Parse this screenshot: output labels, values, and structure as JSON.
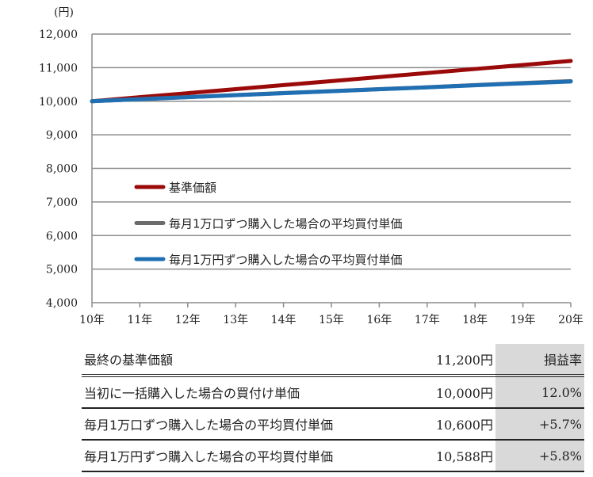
{
  "chart_data": {
    "type": "line",
    "ylabel": "(円)",
    "ylim": [
      4000,
      12000
    ],
    "yticks": [
      "4,000",
      "5,000",
      "6,000",
      "7,000",
      "8,000",
      "9,000",
      "10,000",
      "11,000",
      "12,000"
    ],
    "ytick_values": [
      4000,
      5000,
      6000,
      7000,
      8000,
      9000,
      10000,
      11000,
      12000
    ],
    "x": [
      10,
      11,
      12,
      13,
      14,
      15,
      16,
      17,
      18,
      19,
      20
    ],
    "xticks": [
      "10年",
      "11年",
      "12年",
      "13年",
      "14年",
      "15年",
      "16年",
      "17年",
      "18年",
      "19年",
      "20年"
    ],
    "grid": true,
    "legend_position": "center-left",
    "series": [
      {
        "name": "基準価額",
        "color": "#9b0a0a",
        "values": [
          10000,
          10120,
          10240,
          10360,
          10480,
          10600,
          10720,
          10840,
          10960,
          11080,
          11200
        ]
      },
      {
        "name": "毎月1万口ずつ購入した場合の平均買付単価",
        "color": "#6b6b6b",
        "values": [
          10000,
          10062,
          10124,
          10184,
          10244,
          10302,
          10360,
          10416,
          10482,
          10542,
          10600
        ]
      },
      {
        "name": "毎月1万円ずつ購入した場合の平均買付単価",
        "color": "#1f6fb2",
        "values": [
          10000,
          10060,
          10120,
          10180,
          10240,
          10298,
          10356,
          10412,
          10476,
          10532,
          10588
        ]
      }
    ]
  },
  "table": {
    "header": {
      "label": "最終の基準価額",
      "value": "11,200円",
      "rate": "損益率"
    },
    "rows": [
      {
        "label": "当初に一括購入した場合の買付け単価",
        "value": "10,000円",
        "rate": "12.0%"
      },
      {
        "label": "毎月1万口ずつ購入した場合の平均買付単価",
        "value": "10,600円",
        "rate": "+5.7%"
      },
      {
        "label": "毎月1万円ずつ購入した場合の平均買付単価",
        "value": "10,588円",
        "rate": "+5.8%"
      }
    ]
  }
}
